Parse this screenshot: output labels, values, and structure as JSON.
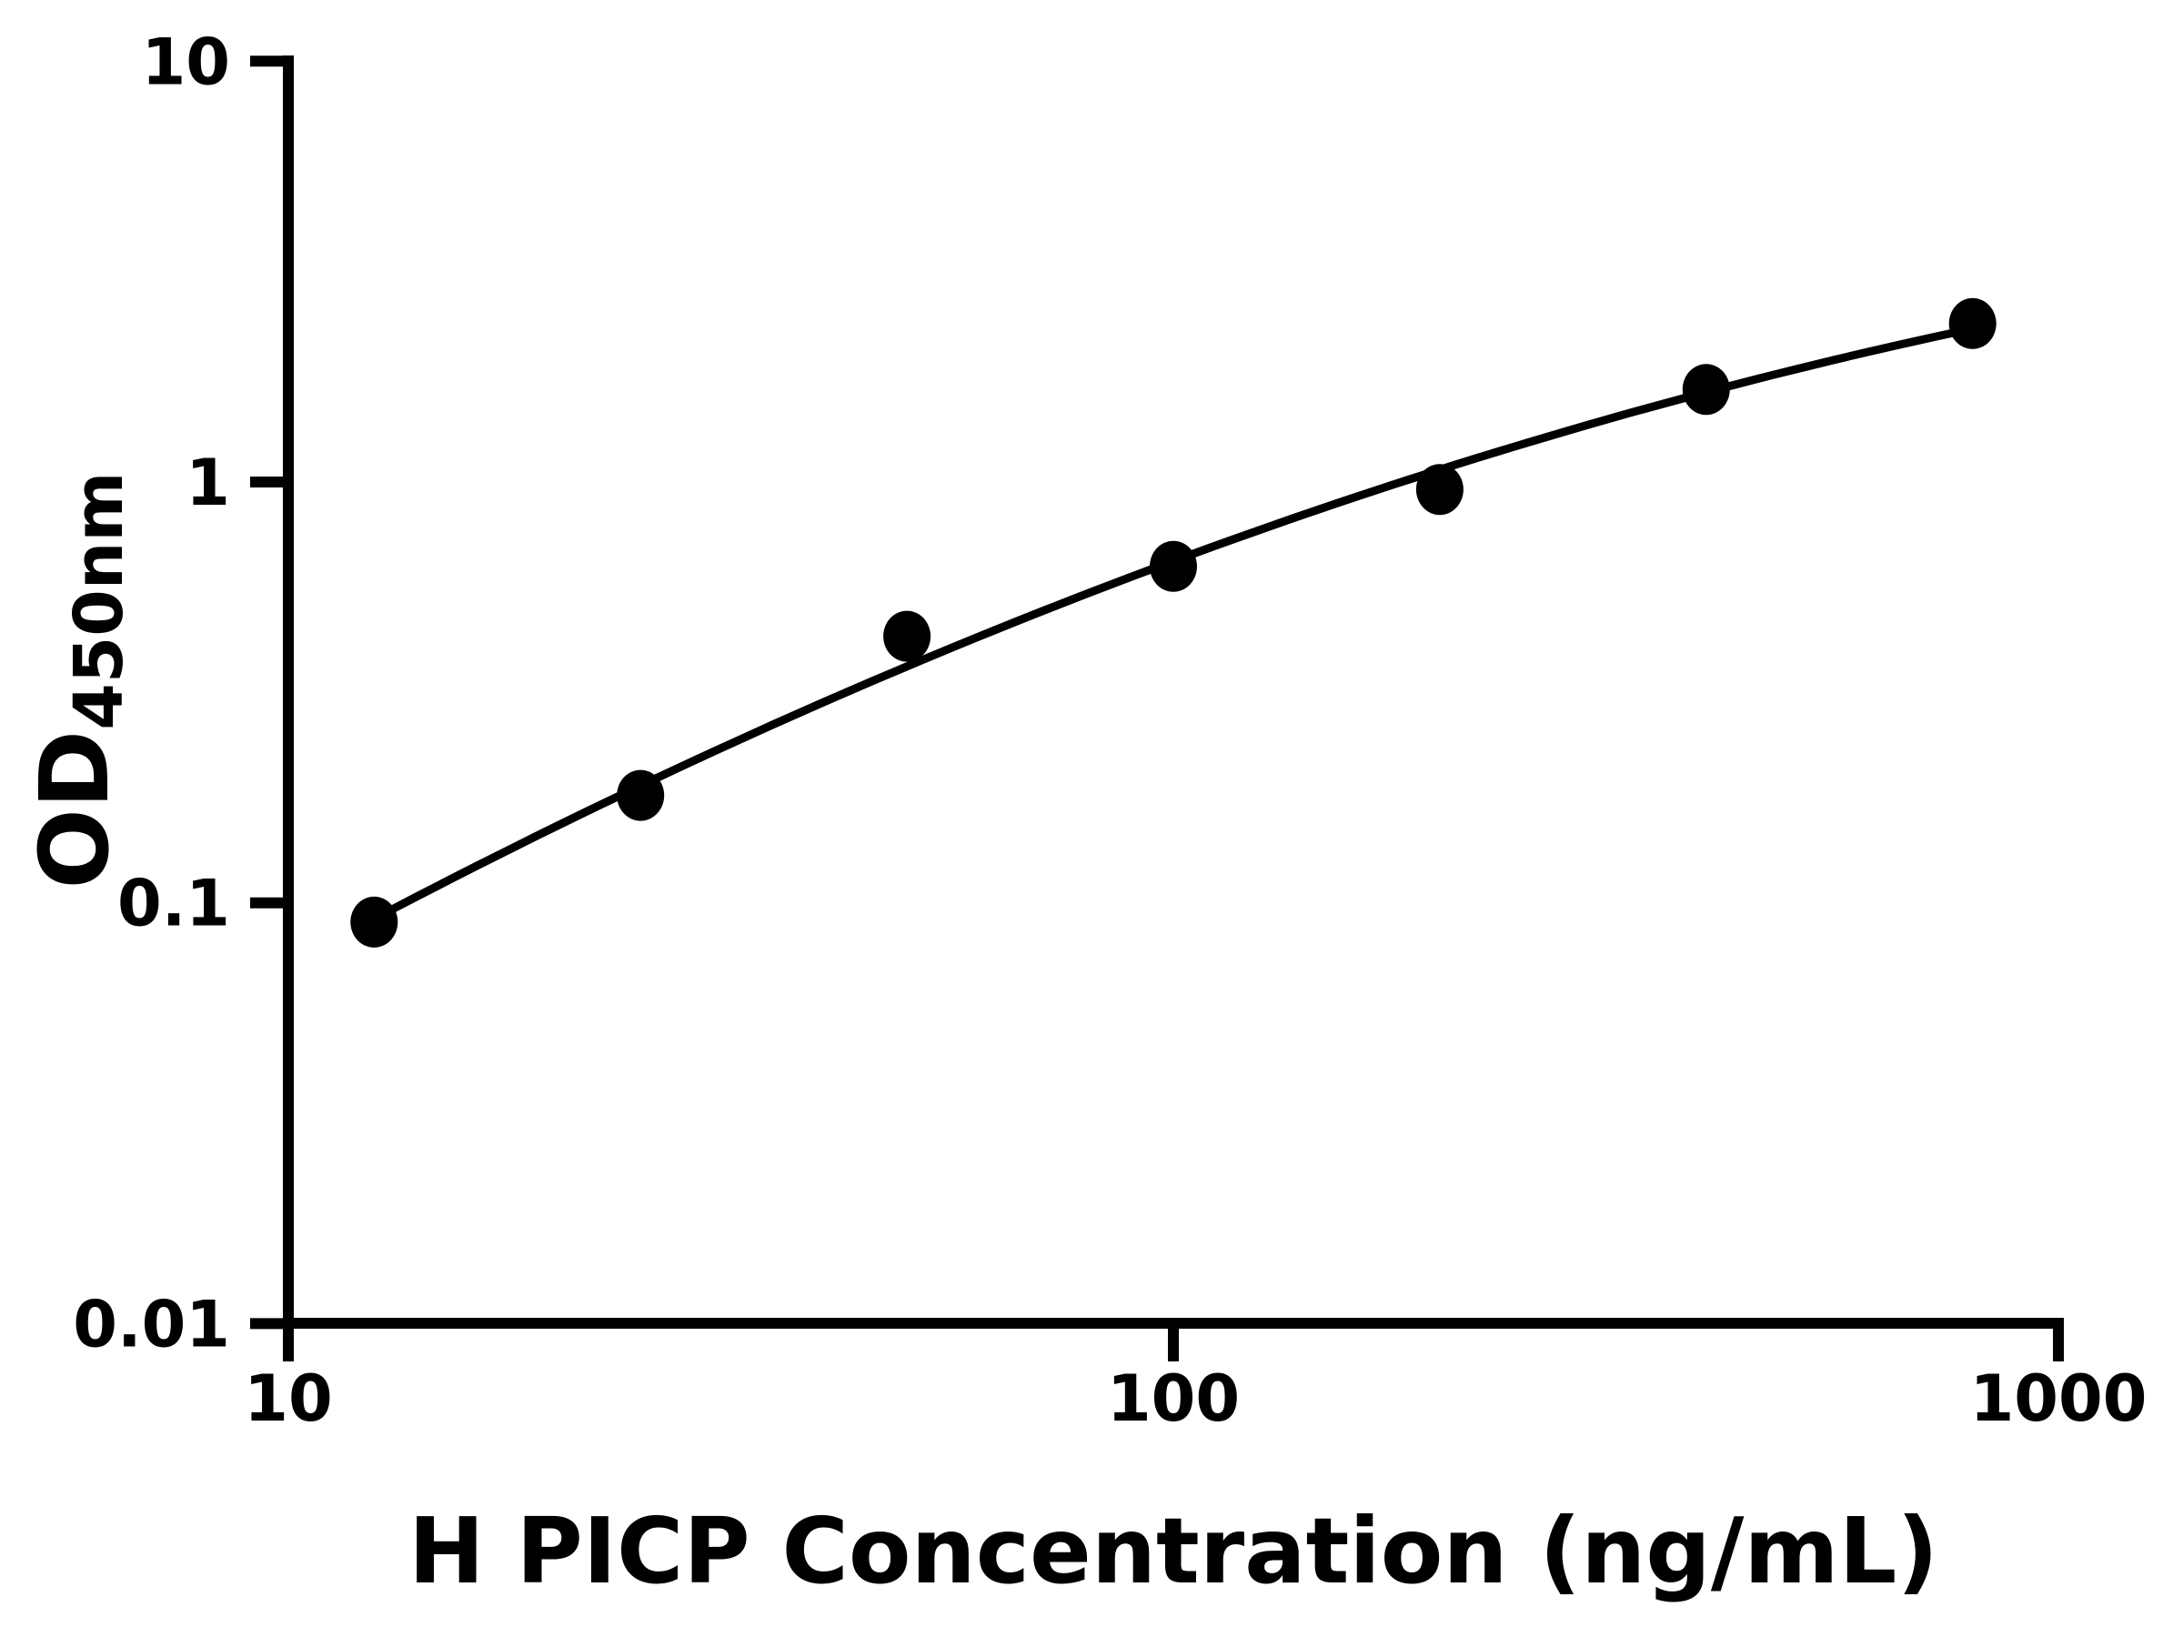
{
  "chart_data": {
    "type": "scatter",
    "title": "",
    "xlabel": "H PICP Concentration (ng/mL)",
    "ylabel_main": "OD",
    "ylabel_sub": "450nm",
    "x_scale": "log",
    "y_scale": "log",
    "xlim": [
      10,
      1000
    ],
    "ylim": [
      0.01,
      10
    ],
    "grid": "off",
    "legend": "none",
    "x_ticks": [
      {
        "value": 10,
        "label": "10"
      },
      {
        "value": 100,
        "label": "100"
      },
      {
        "value": 1000,
        "label": "1000"
      }
    ],
    "y_ticks": [
      {
        "value": 10,
        "label": "10"
      },
      {
        "value": 1,
        "label": "1"
      },
      {
        "value": 0.1,
        "label": "0.1"
      },
      {
        "value": 0.01,
        "label": "0.01"
      }
    ],
    "series": [
      {
        "name": "standard-curve-points",
        "marker": "filled-circle",
        "color": "#000000",
        "x": [
          12.5,
          25,
          50,
          100,
          200,
          400,
          800
        ],
        "y": [
          0.09,
          0.18,
          0.43,
          0.63,
          0.96,
          1.66,
          2.38
        ]
      }
    ],
    "curve": "smooth fitted line through points (log-log)"
  }
}
